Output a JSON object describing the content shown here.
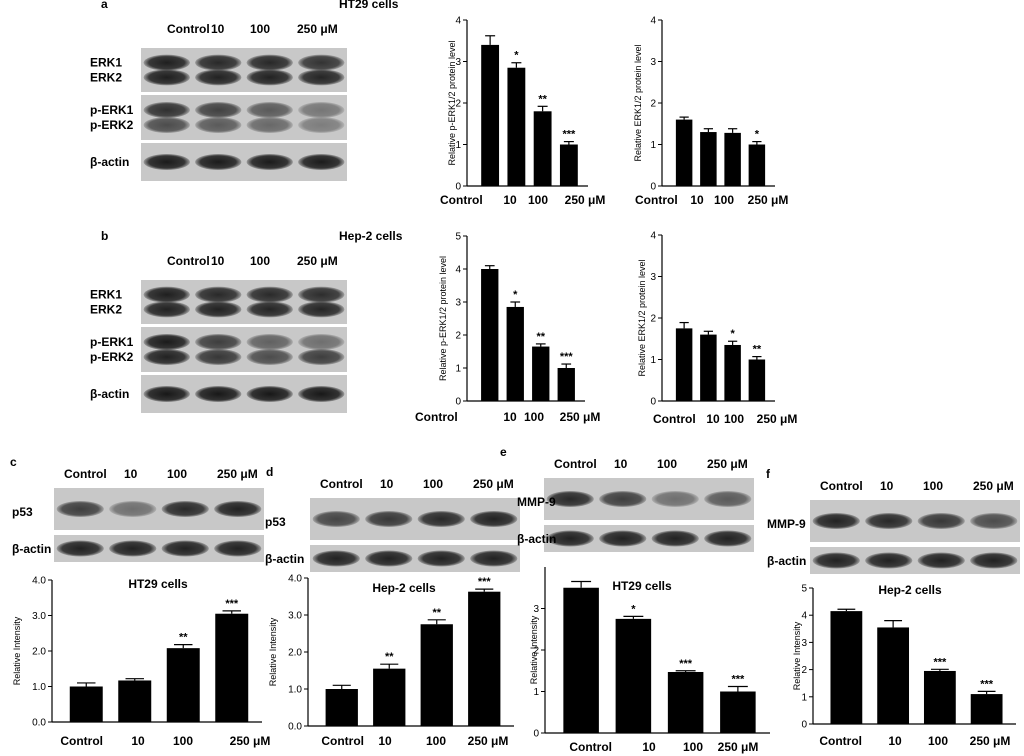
{
  "panels": {
    "a": {
      "letter": "a",
      "cell_line": "HT29 cells",
      "lanes": [
        "Control",
        "10",
        "100",
        "250 μM"
      ],
      "blots": [
        {
          "labels": [
            "ERK1",
            "ERK2"
          ],
          "bands": [
            [
              0.92,
              0.85,
              0.86,
              0.78
            ],
            [
              0.92,
              0.9,
              0.9,
              0.88
            ]
          ]
        },
        {
          "labels": [
            "p-ERK1",
            "p-ERK2"
          ],
          "bands": [
            [
              0.8,
              0.68,
              0.5,
              0.3
            ],
            [
              0.6,
              0.5,
              0.4,
              0.25
            ]
          ]
        },
        {
          "labels": [
            "β-actin"
          ],
          "bands": [
            [
              0.95,
              0.95,
              0.95,
              0.95
            ]
          ]
        }
      ]
    },
    "b": {
      "letter": "b",
      "cell_line": "Hep-2 cells",
      "lanes": [
        "Control",
        "10",
        "100",
        "250 μM"
      ],
      "blots": [
        {
          "labels": [
            "ERK1",
            "ERK2"
          ],
          "bands": [
            [
              0.92,
              0.85,
              0.84,
              0.82
            ],
            [
              0.9,
              0.9,
              0.88,
              0.88
            ]
          ]
        },
        {
          "labels": [
            "p-ERK1",
            "p-ERK2"
          ],
          "bands": [
            [
              0.95,
              0.7,
              0.45,
              0.35
            ],
            [
              0.9,
              0.75,
              0.6,
              0.7
            ]
          ]
        },
        {
          "labels": [
            "β-actin"
          ],
          "bands": [
            [
              0.97,
              0.97,
              0.97,
              0.97
            ]
          ]
        }
      ]
    },
    "c": {
      "letter": "c",
      "lanes": [
        "Control",
        "10",
        "100",
        "250 μM"
      ],
      "protein": "p53",
      "protein_bands": [
        0.7,
        0.35,
        0.85,
        0.9
      ],
      "actin": "β-actin",
      "actin_bands": [
        0.9,
        0.9,
        0.9,
        0.9
      ]
    },
    "d": {
      "letter": "d",
      "lanes": [
        "Control",
        "10",
        "100",
        "250 μM"
      ],
      "protein": "p53",
      "protein_bands": [
        0.65,
        0.75,
        0.85,
        0.9
      ],
      "actin": "β-actin",
      "actin_bands": [
        0.9,
        0.9,
        0.9,
        0.9
      ]
    },
    "e": {
      "letter": "e",
      "lanes": [
        "Control",
        "10",
        "100",
        "250 μM"
      ],
      "protein": "MMP-9",
      "protein_bands": [
        0.85,
        0.7,
        0.35,
        0.5
      ],
      "actin": "β-actin",
      "actin_bands": [
        0.9,
        0.9,
        0.9,
        0.9
      ]
    },
    "f": {
      "letter": "f",
      "lanes": [
        "Control",
        "10",
        "100",
        "250 μM"
      ],
      "protein": "MMP-9",
      "protein_bands": [
        0.9,
        0.85,
        0.75,
        0.6
      ],
      "actin": "β-actin",
      "actin_bands": [
        0.9,
        0.9,
        0.9,
        0.9
      ]
    }
  },
  "chart_data": [
    {
      "id": "a1",
      "type": "bar",
      "title": "",
      "xlabel": "",
      "ylabel": "Relative p-ERK1/2 protein level",
      "categories": [
        "Control",
        "10",
        "100",
        "250 μM"
      ],
      "values": [
        3.4,
        2.85,
        1.8,
        1.0
      ],
      "errors": [
        0.22,
        0.12,
        0.12,
        0.07
      ],
      "stars": [
        "",
        "*",
        "**",
        "***"
      ],
      "ylim": [
        0,
        4
      ],
      "yticks": [
        "0",
        "1",
        "2",
        "3",
        "4"
      ],
      "tick_values": [
        0,
        1,
        2,
        3,
        4
      ]
    },
    {
      "id": "a2",
      "type": "bar",
      "title": "",
      "xlabel": "",
      "ylabel": "Relative ERK1/2 protein level",
      "categories": [
        "Control",
        "10",
        "100",
        "250 μM"
      ],
      "values": [
        1.6,
        1.3,
        1.28,
        1.0
      ],
      "errors": [
        0.06,
        0.08,
        0.1,
        0.07
      ],
      "stars": [
        "",
        "",
        "",
        "*"
      ],
      "ylim": [
        0,
        4
      ],
      "yticks": [
        "0",
        "1",
        "2",
        "3",
        "4"
      ],
      "tick_values": [
        0,
        1,
        2,
        3,
        4
      ]
    },
    {
      "id": "b1",
      "type": "bar",
      "title": "",
      "xlabel": "",
      "ylabel": "Relative p-ERK1/2 protein level",
      "categories": [
        "Control",
        "10",
        "100",
        "250 μM"
      ],
      "values": [
        4.0,
        2.85,
        1.65,
        1.0
      ],
      "errors": [
        0.1,
        0.15,
        0.08,
        0.12
      ],
      "stars": [
        "",
        "*",
        "**",
        "***"
      ],
      "ylim": [
        0,
        5
      ],
      "yticks": [
        "0",
        "1",
        "2",
        "3",
        "4",
        "5"
      ],
      "tick_values": [
        0,
        1,
        2,
        3,
        4,
        5
      ]
    },
    {
      "id": "b2",
      "type": "bar",
      "title": "",
      "xlabel": "",
      "ylabel": "Relative ERK1/2 protein level",
      "categories": [
        "Control",
        "10",
        "100",
        "250 μM"
      ],
      "values": [
        1.75,
        1.6,
        1.35,
        1.0
      ],
      "errors": [
        0.14,
        0.08,
        0.09,
        0.07
      ],
      "stars": [
        "",
        "",
        "*",
        "**"
      ],
      "ylim": [
        0,
        4
      ],
      "yticks": [
        "0",
        "1",
        "2",
        "3",
        "4"
      ],
      "tick_values": [
        0,
        1,
        2,
        3,
        4
      ]
    },
    {
      "id": "c",
      "type": "bar",
      "title": "HT29 cells",
      "xlabel": "",
      "ylabel": "Relative Intensity",
      "categories": [
        "Control",
        "10",
        "100",
        "250 μM"
      ],
      "values": [
        1.0,
        1.17,
        2.08,
        3.05
      ],
      "errors": [
        0.1,
        0.05,
        0.1,
        0.08
      ],
      "stars": [
        "",
        "",
        "**",
        "***"
      ],
      "ylim": [
        0,
        4
      ],
      "yticks": [
        "0.0",
        "1.0",
        "2.0",
        "3.0",
        "4.0"
      ],
      "tick_values": [
        0,
        1,
        2,
        3,
        4
      ]
    },
    {
      "id": "d",
      "type": "bar",
      "title": "Hep-2 cells",
      "xlabel": "",
      "ylabel": "Relative Intensity",
      "categories": [
        "Control",
        "10",
        "100",
        "250 μM"
      ],
      "values": [
        1.0,
        1.55,
        2.75,
        3.63
      ],
      "errors": [
        0.1,
        0.12,
        0.12,
        0.07
      ],
      "stars": [
        "",
        "**",
        "**",
        "***"
      ],
      "ylim": [
        0,
        4
      ],
      "yticks": [
        "0.0",
        "1.0",
        "2.0",
        "3.0",
        "4.0"
      ],
      "tick_values": [
        0,
        1,
        2,
        3,
        4
      ]
    },
    {
      "id": "e",
      "type": "bar",
      "title": "HT29 cells",
      "xlabel": "",
      "ylabel": "Relative Intensity",
      "categories": [
        "Control",
        "10",
        "100",
        "250 μM"
      ],
      "values": [
        3.5,
        2.75,
        1.47,
        1.0
      ],
      "errors": [
        0.15,
        0.06,
        0.03,
        0.12
      ],
      "stars": [
        "",
        "*",
        "***",
        "***"
      ],
      "ylim": [
        0,
        4
      ],
      "yticks": [
        "0",
        "1",
        "2",
        "3"
      ],
      "tick_values": [
        0,
        1,
        2,
        3
      ]
    },
    {
      "id": "f",
      "type": "bar",
      "title": "Hep-2 cells",
      "xlabel": "",
      "ylabel": "Relative Intensity",
      "categories": [
        "Control",
        "10",
        "100",
        "250 μM"
      ],
      "values": [
        4.15,
        3.55,
        1.95,
        1.1
      ],
      "errors": [
        0.07,
        0.25,
        0.06,
        0.1
      ],
      "stars": [
        "",
        "",
        "***",
        "***"
      ],
      "ylim": [
        0,
        5
      ],
      "yticks": [
        "0",
        "1",
        "2",
        "3",
        "4",
        "5"
      ],
      "tick_values": [
        0,
        1,
        2,
        3,
        4,
        5
      ]
    }
  ]
}
